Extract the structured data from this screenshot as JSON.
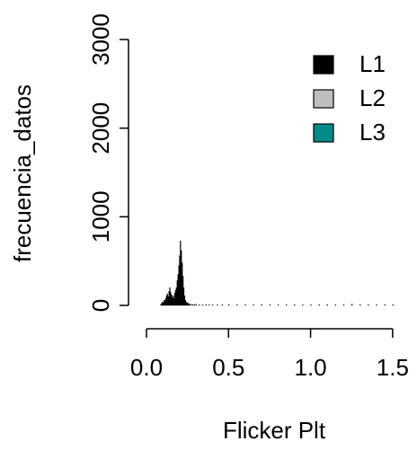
{
  "chart_data": {
    "type": "bar",
    "title": "",
    "xlabel": "Flicker Plt",
    "ylabel": "frecuencia_datos",
    "xlim": [
      0.0,
      1.55
    ],
    "ylim": [
      0,
      3000
    ],
    "xticks": [
      0.0,
      0.5,
      1.0,
      1.5
    ],
    "xtick_labels": [
      "0.0",
      "0.5",
      "1.0",
      "1.5"
    ],
    "yticks": [
      0,
      1000,
      2000,
      3000
    ],
    "ytick_labels": [
      "0",
      "1000",
      "2000",
      "3000"
    ],
    "grid": false,
    "legend_position": "top-right",
    "bin_width": 0.005,
    "series": [
      {
        "name": "L1",
        "color": "#000000",
        "bins": [
          [
            0.085,
            10
          ],
          [
            0.09,
            25
          ],
          [
            0.095,
            40
          ],
          [
            0.1,
            30
          ],
          [
            0.105,
            60
          ],
          [
            0.11,
            50
          ],
          [
            0.115,
            80
          ],
          [
            0.12,
            110
          ],
          [
            0.125,
            130
          ],
          [
            0.13,
            100
          ],
          [
            0.135,
            160
          ],
          [
            0.14,
            200
          ],
          [
            0.145,
            150
          ],
          [
            0.15,
            120
          ],
          [
            0.155,
            90
          ],
          [
            0.16,
            110
          ],
          [
            0.165,
            80
          ],
          [
            0.17,
            140
          ],
          [
            0.175,
            170
          ],
          [
            0.18,
            200
          ],
          [
            0.185,
            280
          ],
          [
            0.19,
            350
          ],
          [
            0.195,
            450
          ],
          [
            0.2,
            560
          ],
          [
            0.205,
            730
          ],
          [
            0.21,
            620
          ],
          [
            0.215,
            480
          ],
          [
            0.22,
            330
          ],
          [
            0.225,
            200
          ],
          [
            0.23,
            110
          ],
          [
            0.235,
            60
          ],
          [
            0.24,
            40
          ],
          [
            0.245,
            30
          ],
          [
            0.25,
            25
          ],
          [
            0.255,
            20
          ],
          [
            0.26,
            15
          ],
          [
            0.27,
            12
          ],
          [
            0.28,
            10
          ],
          [
            0.29,
            8
          ],
          [
            0.3,
            12
          ],
          [
            0.32,
            8
          ],
          [
            0.34,
            6
          ],
          [
            0.36,
            5
          ],
          [
            0.38,
            6
          ],
          [
            0.4,
            5
          ],
          [
            0.43,
            4
          ],
          [
            0.46,
            4
          ],
          [
            0.5,
            3
          ],
          [
            0.55,
            3
          ],
          [
            0.6,
            4
          ],
          [
            0.65,
            2
          ],
          [
            0.7,
            3
          ],
          [
            0.75,
            2
          ],
          [
            0.8,
            2
          ],
          [
            0.85,
            3
          ],
          [
            0.9,
            2
          ],
          [
            0.95,
            2
          ],
          [
            1.0,
            2
          ],
          [
            1.05,
            2
          ],
          [
            1.1,
            2
          ],
          [
            1.15,
            2
          ],
          [
            1.2,
            3
          ],
          [
            1.25,
            15
          ],
          [
            1.3,
            2
          ],
          [
            1.35,
            2
          ],
          [
            1.4,
            10
          ],
          [
            1.45,
            2
          ],
          [
            1.5,
            2
          ]
        ]
      },
      {
        "name": "L2",
        "color": "#bebebe",
        "bins": []
      },
      {
        "name": "L3",
        "color": "#008b8b",
        "bins": []
      }
    ]
  }
}
